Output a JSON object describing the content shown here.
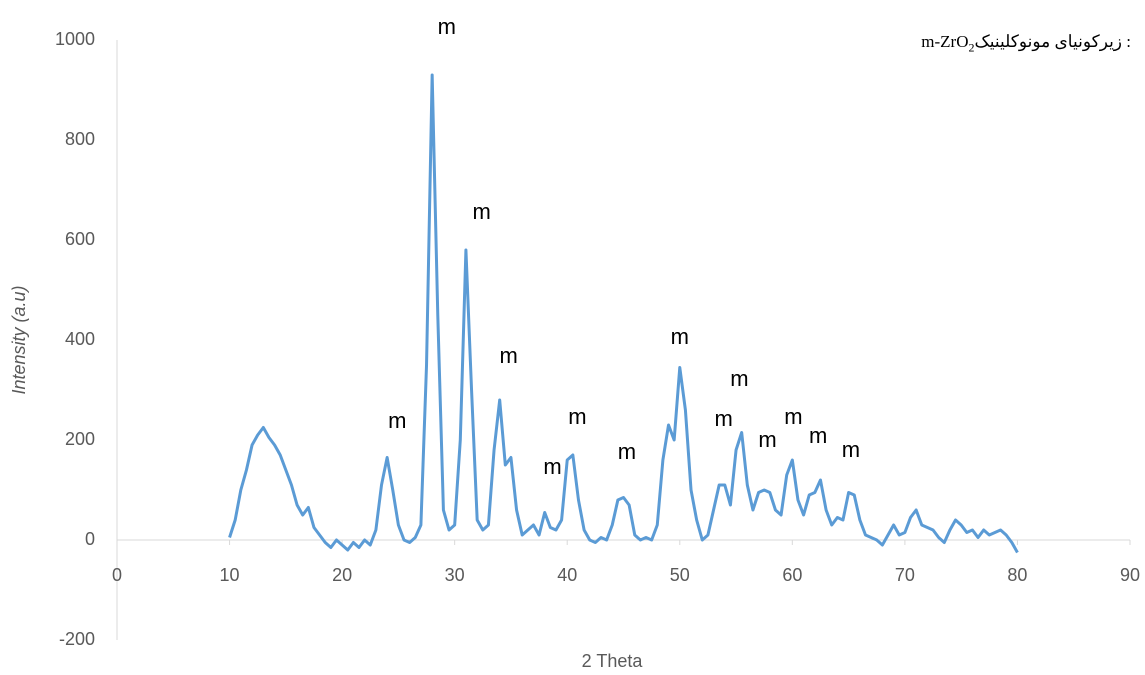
{
  "chart_data": {
    "type": "line",
    "xlabel": "2 Theta",
    "ylabel": "Intensity (a.u)",
    "note": {
      "formula": "m-ZrO",
      "subscript": "2",
      "text": ": زیرکونیای مونوکلینیک"
    },
    "xlim": [
      0,
      90
    ],
    "xticks": [
      0,
      10,
      20,
      30,
      40,
      50,
      60,
      70,
      80,
      90
    ],
    "ylim": [
      -200,
      1000
    ],
    "yticks": [
      -200,
      0,
      200,
      400,
      600,
      800,
      1000
    ],
    "x": [
      10,
      10.5,
      11,
      11.5,
      12,
      12.5,
      13,
      13.5,
      14,
      14.5,
      15,
      15.5,
      16,
      16.5,
      17,
      17.5,
      18,
      18.5,
      19,
      19.5,
      20,
      20.5,
      21,
      21.5,
      22,
      22.5,
      23,
      23.5,
      24,
      24.5,
      25,
      25.5,
      26,
      26.5,
      27,
      27.5,
      28,
      28.5,
      29,
      29.5,
      30,
      30.5,
      31,
      31.5,
      32,
      32.5,
      33,
      33.5,
      34,
      34.5,
      35,
      35.5,
      36,
      36.5,
      37,
      37.5,
      38,
      38.5,
      39,
      39.5,
      40,
      40.5,
      41,
      41.5,
      42,
      42.5,
      43,
      43.5,
      44,
      44.5,
      45,
      45.5,
      46,
      46.5,
      47,
      47.5,
      48,
      48.5,
      49,
      49.5,
      50,
      50.5,
      51,
      51.5,
      52,
      52.5,
      53,
      53.5,
      54,
      54.5,
      55,
      55.5,
      56,
      56.5,
      57,
      57.5,
      58,
      58.5,
      59,
      59.5,
      60,
      60.5,
      61,
      61.5,
      62,
      62.5,
      63,
      63.5,
      64,
      64.5,
      65,
      65.5,
      66,
      66.5,
      67,
      67.5,
      68,
      68.5,
      69,
      69.5,
      70,
      70.5,
      71,
      71.5,
      72,
      72.5,
      73,
      73.5,
      74,
      74.5,
      75,
      75.5,
      76,
      76.5,
      77,
      77.5,
      78,
      78.5,
      79,
      79.5,
      80
    ],
    "series": [
      {
        "color": "#5b9bd5",
        "values": [
          5,
          40,
          100,
          140,
          190,
          210,
          225,
          205,
          190,
          170,
          140,
          110,
          70,
          50,
          65,
          25,
          10,
          -5,
          -15,
          0,
          -10,
          -20,
          -5,
          -15,
          0,
          -10,
          20,
          110,
          165,
          100,
          30,
          0,
          -5,
          5,
          30,
          350,
          930,
          450,
          60,
          20,
          30,
          200,
          580,
          300,
          40,
          20,
          30,
          180,
          280,
          150,
          165,
          60,
          10,
          20,
          30,
          10,
          55,
          25,
          20,
          40,
          160,
          170,
          80,
          20,
          0,
          -5,
          5,
          0,
          30,
          80,
          85,
          70,
          10,
          0,
          5,
          0,
          30,
          160,
          230,
          200,
          345,
          260,
          100,
          40,
          0,
          10,
          60,
          110,
          110,
          70,
          180,
          215,
          110,
          60,
          95,
          100,
          95,
          60,
          50,
          130,
          160,
          80,
          50,
          90,
          95,
          120,
          60,
          30,
          45,
          40,
          95,
          90,
          40,
          10,
          5,
          0,
          -10,
          10,
          30,
          10,
          15,
          45,
          60,
          30,
          25,
          20,
          5,
          -5,
          20,
          40,
          30,
          15,
          20,
          5,
          20,
          10,
          15,
          20,
          10,
          -5,
          -25
        ]
      }
    ],
    "annotations": [
      {
        "text": "m",
        "x": 29.3,
        "y": 1024
      },
      {
        "text": "m",
        "x": 32.4,
        "y": 654
      },
      {
        "text": "m",
        "x": 34.8,
        "y": 366
      },
      {
        "text": "m",
        "x": 24.9,
        "y": 236
      },
      {
        "text": "m",
        "x": 40.9,
        "y": 244
      },
      {
        "text": "m",
        "x": 38.7,
        "y": 144
      },
      {
        "text": "m",
        "x": 45.3,
        "y": 174
      },
      {
        "text": "m",
        "x": 50.0,
        "y": 404
      },
      {
        "text": "m",
        "x": 55.3,
        "y": 320
      },
      {
        "text": "m",
        "x": 53.9,
        "y": 240
      },
      {
        "text": "m",
        "x": 57.8,
        "y": 198
      },
      {
        "text": "m",
        "x": 60.1,
        "y": 244
      },
      {
        "text": "m",
        "x": 62.3,
        "y": 206
      },
      {
        "text": "m",
        "x": 65.2,
        "y": 178
      }
    ]
  }
}
